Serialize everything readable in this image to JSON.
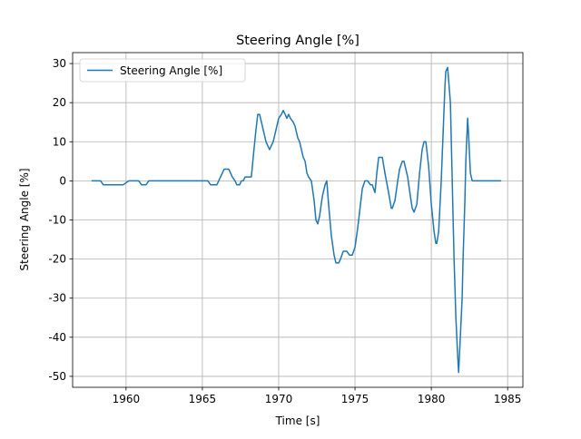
{
  "chart_data": {
    "type": "line",
    "title": "Steering Angle [%]",
    "x_label": "Time [s]",
    "y_label": "Steering Angle [%]",
    "x": [
      1957.74,
      1958.33,
      1958.51,
      1959.82,
      1960.18,
      1960.83,
      1961.01,
      1961.31,
      1961.49,
      1965.36,
      1965.54,
      1965.95,
      1966.07,
      1966.19,
      1966.43,
      1966.73,
      1966.96,
      1967.14,
      1967.26,
      1967.44,
      1967.56,
      1967.68,
      1967.8,
      1968.21,
      1968.33,
      1968.51,
      1968.63,
      1968.75,
      1968.99,
      1969.17,
      1969.4,
      1969.64,
      1969.82,
      1970.0,
      1970.18,
      1970.3,
      1970.42,
      1970.54,
      1970.65,
      1970.77,
      1970.95,
      1971.07,
      1971.25,
      1971.37,
      1971.61,
      1971.73,
      1971.85,
      1971.96,
      1972.14,
      1972.32,
      1972.44,
      1972.56,
      1972.68,
      1972.86,
      1973.04,
      1973.15,
      1973.27,
      1973.45,
      1973.63,
      1973.75,
      1973.93,
      1974.05,
      1974.23,
      1974.46,
      1974.64,
      1974.82,
      1975.0,
      1975.18,
      1975.3,
      1975.48,
      1975.65,
      1975.83,
      1976.01,
      1976.13,
      1976.31,
      1976.43,
      1976.55,
      1976.79,
      1976.96,
      1977.2,
      1977.38,
      1977.44,
      1977.62,
      1977.8,
      1977.92,
      1978.1,
      1978.21,
      1978.45,
      1978.63,
      1978.75,
      1978.87,
      1979.05,
      1979.23,
      1979.4,
      1979.52,
      1979.64,
      1979.82,
      1980.0,
      1980.18,
      1980.3,
      1980.36,
      1980.48,
      1980.65,
      1980.77,
      1980.89,
      1980.95,
      1981.07,
      1981.25,
      1981.37,
      1981.49,
      1981.61,
      1981.73,
      1981.79,
      1981.9,
      1982.02,
      1982.08,
      1982.2,
      1982.26,
      1982.38,
      1982.44,
      1982.56,
      1982.68,
      1984.58
    ],
    "series": [
      {
        "name": "Steering Angle [%]",
        "color": "#1f77b4",
        "values": [
          0,
          0,
          -1,
          -1,
          0,
          0,
          -1,
          -1,
          0,
          0,
          -1,
          -1,
          0,
          1,
          3,
          3,
          1,
          0,
          -1,
          -1,
          0,
          0,
          1,
          1,
          6,
          13,
          17,
          17,
          13,
          10,
          8,
          10,
          13,
          16,
          17,
          18,
          17,
          16,
          17,
          16,
          15,
          14,
          11,
          10,
          6,
          5,
          2,
          1,
          0,
          -5,
          -10,
          -11,
          -9,
          -4,
          -1,
          0,
          -6,
          -14,
          -19,
          -21,
          -21,
          -20,
          -18,
          -18,
          -19,
          -19,
          -17,
          -12,
          -8,
          -2,
          0,
          0,
          -1,
          -1,
          -3,
          2,
          6,
          6,
          2,
          -3,
          -7,
          -7,
          -5,
          0,
          3,
          5,
          5,
          1,
          -4,
          -7,
          -8,
          -6,
          2,
          8,
          10,
          10,
          4,
          -6,
          -13,
          -16,
          -16,
          -13,
          0,
          12,
          24,
          28,
          29,
          20,
          0,
          -20,
          -35,
          -45,
          -49,
          -40,
          -30,
          -20,
          -5,
          5,
          16,
          12,
          2,
          0,
          0
        ]
      }
    ],
    "xlim": [
      1956.5,
      1986
    ],
    "ylim": [
      -52.8,
      32.8
    ],
    "xticks": [
      1960,
      1965,
      1970,
      1975,
      1980,
      1985
    ],
    "yticks": [
      -50,
      -40,
      -30,
      -20,
      -10,
      0,
      10,
      20,
      30
    ],
    "grid": true,
    "legend": "upper-left"
  }
}
